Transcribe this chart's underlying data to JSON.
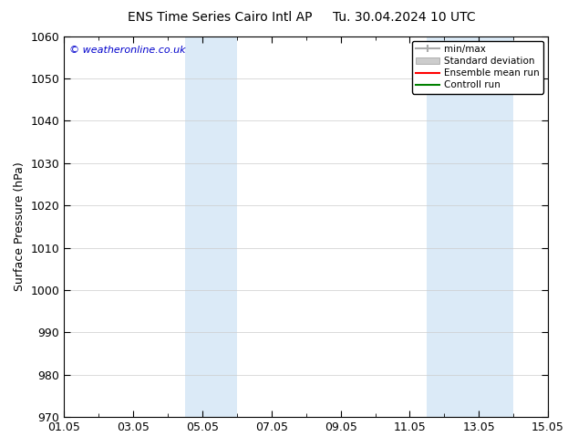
{
  "title": "ENS Time Series Cairo Intl AP",
  "title_right": "Tu. 30.04.2024 10 UTC",
  "ylabel": "Surface Pressure (hPa)",
  "watermark": "© weatheronline.co.uk",
  "ylim": [
    970,
    1060
  ],
  "yticks": [
    970,
    980,
    990,
    1000,
    1010,
    1020,
    1030,
    1040,
    1050,
    1060
  ],
  "xtick_labels": [
    "01.05",
    "03.05",
    "05.05",
    "07.05",
    "09.05",
    "11.05",
    "13.05",
    "15.05"
  ],
  "xtick_positions": [
    0,
    2,
    4,
    6,
    8,
    10,
    12,
    14
  ],
  "xlim": [
    0,
    14
  ],
  "shaded_bands": [
    {
      "x_start": 3.5,
      "x_end": 5.0,
      "color": "#dbeaf7"
    },
    {
      "x_start": 10.5,
      "x_end": 13.0,
      "color": "#dbeaf7"
    }
  ],
  "legend_entries": [
    {
      "label": "min/max",
      "color": "#aaaaaa",
      "style": "minmax"
    },
    {
      "label": "Standard deviation",
      "color": "#cccccc",
      "style": "stddev"
    },
    {
      "label": "Ensemble mean run",
      "color": "#ff0000",
      "style": "line"
    },
    {
      "label": "Controll run",
      "color": "#008000",
      "style": "line"
    }
  ],
  "background_color": "#ffffff",
  "plot_bg_color": "#ffffff",
  "border_color": "#000000",
  "font_size": 9,
  "title_font_size": 10,
  "watermark_color": "#0000cc"
}
